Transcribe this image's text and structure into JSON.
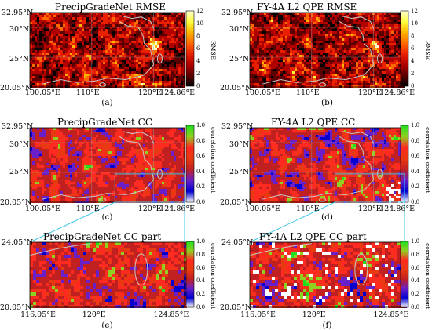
{
  "colors": {
    "rmse_scale": [
      "#000000",
      "#5a0000",
      "#b00000",
      "#e82000",
      "#ff6a00",
      "#ffb400",
      "#ffff40",
      "#ffffd0"
    ],
    "cc_scale": [
      "#ffffff",
      "#0000d0",
      "#6a20c8",
      "#c02020",
      "#e83a10",
      "#ff2a20",
      "#8fd020",
      "#20e020"
    ],
    "boundary": "#c8c8c8",
    "zoom_box": "#3cc8e8"
  },
  "panels": [
    {
      "id": "a",
      "title": "PrecipGradeNet RMSE",
      "label": "(a)",
      "lat_top": "32.95°N",
      "lat_ticks": [
        "30°N",
        "25°N"
      ],
      "lat_bottom": "20.05°N",
      "lon_ticks": [
        "100.05°E",
        "110°E",
        "120°E",
        "124.86°E"
      ],
      "colorbar_ticks": [
        "12",
        "10",
        "8",
        "6",
        "4",
        "2",
        "0"
      ],
      "colorbar_label": "RMSE"
    },
    {
      "id": "b",
      "title": "FY-4A L2 QPE RMSE",
      "label": "(b)",
      "lat_top": "32.95°N",
      "lat_ticks": [
        "30°N",
        "25°N"
      ],
      "lat_bottom": "20.05°N",
      "lon_ticks": [
        "100.05°E",
        "110°E",
        "120°E",
        "124.86°E"
      ],
      "colorbar_ticks": [
        "12",
        "10",
        "8",
        "6",
        "4",
        "2",
        "0"
      ],
      "colorbar_label": "RMSE"
    },
    {
      "id": "c",
      "title": "PrecipGradeNet CC",
      "label": "(c)",
      "lat_top": "32.95°N",
      "lat_ticks": [
        "30°N",
        "25°N"
      ],
      "lat_bottom": "20.05°N",
      "lon_ticks": [
        "100.05°E",
        "110°E",
        "120°E",
        "124.86°E"
      ],
      "colorbar_ticks": [
        "1.0",
        "0.8",
        "0.6",
        "0.4",
        "0.2",
        "0.0"
      ],
      "colorbar_label": "correlation coefficient"
    },
    {
      "id": "d",
      "title": "FY-4A L2 QPE CC",
      "label": "(d)",
      "lat_top": "32.95°N",
      "lat_ticks": [
        "30°N",
        "25°N"
      ],
      "lat_bottom": "20.05°N",
      "lon_ticks": [
        "100.05°E",
        "110°E",
        "120°E",
        "124.86°E"
      ],
      "colorbar_ticks": [
        "1.0",
        "0.8",
        "0.6",
        "0.4",
        "0.2",
        "0.0"
      ],
      "colorbar_label": "correlation coefficient"
    },
    {
      "id": "e",
      "title": "PrecipGradeNet CC part",
      "label": "(e)",
      "lat_top": "24.05°N",
      "lat_ticks": [],
      "lat_bottom": "20.05°N",
      "lon_ticks": [
        "116.05°E",
        "120°E",
        "124.85°E"
      ],
      "colorbar_ticks": [
        "1.0",
        "0.8",
        "0.6",
        "0.4",
        "0.2",
        "0.0"
      ],
      "colorbar_label": "correlation coefficient"
    },
    {
      "id": "f",
      "title": "FY-4A L2 QPE CC part",
      "label": "(f)",
      "lat_top": "24.05°N",
      "lat_ticks": [],
      "lat_bottom": "20.05°N",
      "lon_ticks": [
        "116.05°E",
        "120°E",
        "124.85°E"
      ],
      "colorbar_ticks": [
        "1.0",
        "0.8",
        "0.6",
        "0.4",
        "0.2",
        "0.0"
      ],
      "colorbar_label": "correlation coefficient"
    }
  ]
}
